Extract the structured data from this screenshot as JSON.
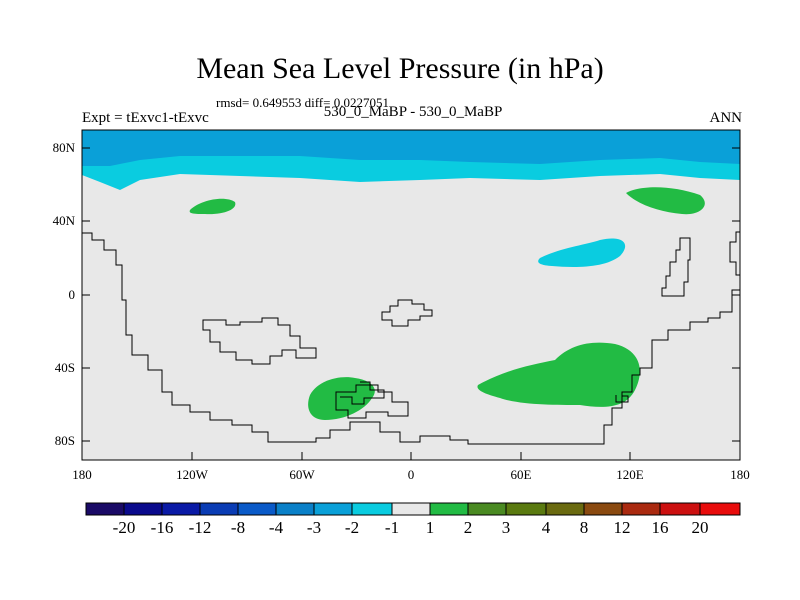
{
  "title": "Mean Sea Level Pressure (in hPa)",
  "stats": "rmsd= 0.649553 diff= 0.0227051",
  "left_label": "Expt = tExvc1-tExvc",
  "center_label": "530_0_MaBP - 530_0_MaBP",
  "right_label": "ANN",
  "y_ticks": [
    "80N",
    "40N",
    "0",
    "40S",
    "80S"
  ],
  "x_ticks": [
    "180",
    "120W",
    "60W",
    "0",
    "60E",
    "120E",
    "180"
  ],
  "colorbar": {
    "labels": [
      "-20",
      "-16",
      "-12",
      "-8",
      "-4",
      "-3",
      "-2",
      "-1",
      "1",
      "2",
      "3",
      "4",
      "8",
      "12",
      "16",
      "20"
    ],
    "colors": [
      "#1a0a66",
      "#0a0a8c",
      "#0a1aa6",
      "#0a3cb4",
      "#0a5ac8",
      "#0a80c8",
      "#0aa0d8",
      "#0acce0",
      "#e8e8e8",
      "#22bb44",
      "#4a8a22",
      "#5a7a10",
      "#6a6a10",
      "#8a4a10",
      "#aa2a10",
      "#cc1010",
      "#e80c0c"
    ]
  },
  "colors": {
    "background": "#e8e8e8",
    "deep_blue": "#0aa0d8",
    "light_blue": "#0acce0",
    "green": "#22bb44",
    "coast": "#000000"
  }
}
